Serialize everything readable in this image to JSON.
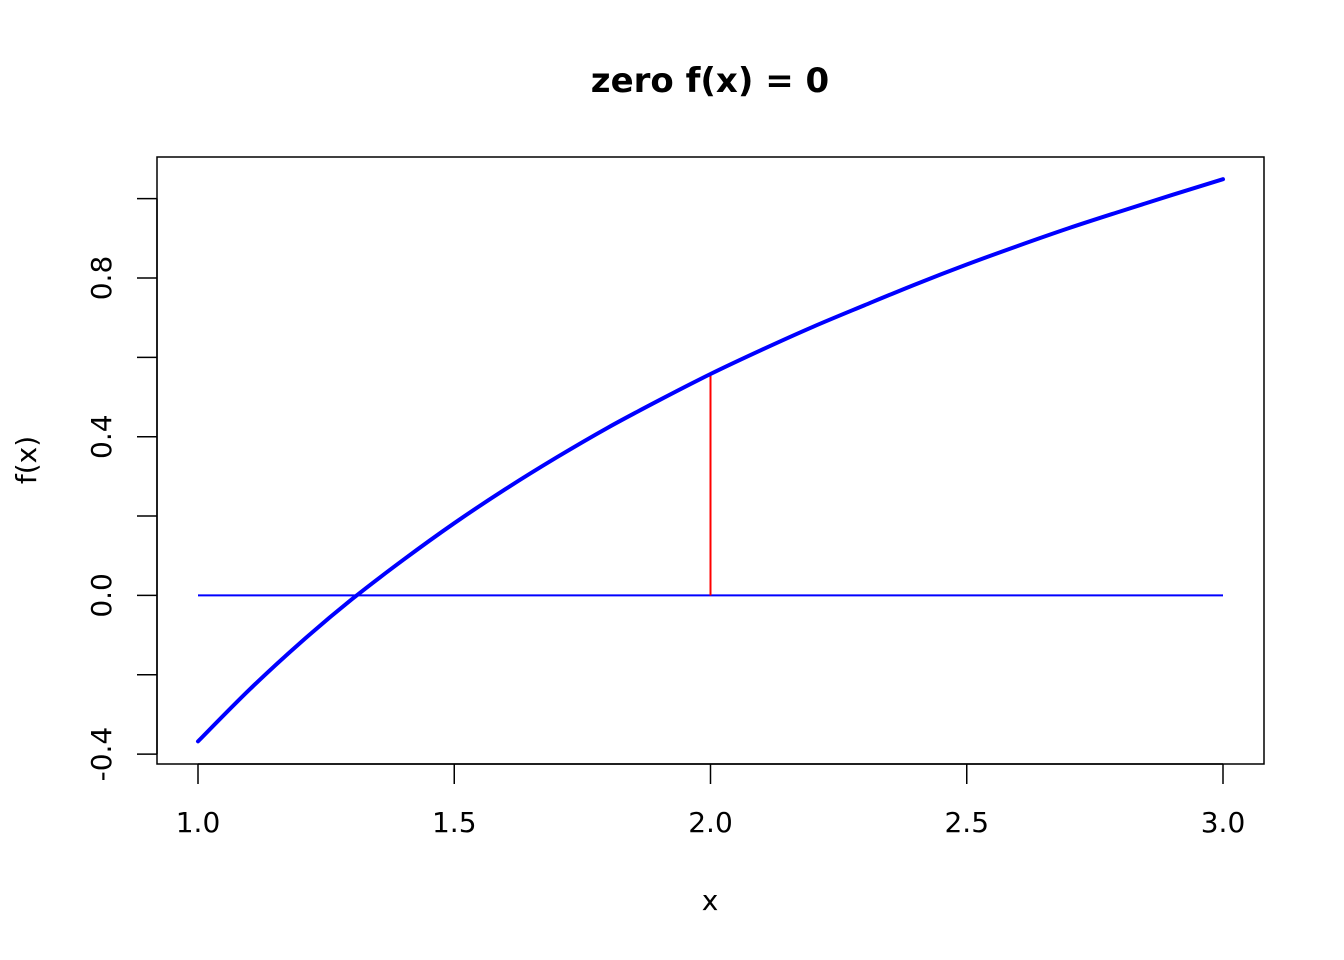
{
  "chart_data": {
    "type": "line",
    "title": "zero f(x) = 0",
    "xlabel": "x",
    "ylabel": "f(x)",
    "xlim": [
      0.92,
      3.08
    ],
    "ylim": [
      -0.425,
      1.105
    ],
    "x_ticks": [
      1.0,
      1.5,
      2.0,
      2.5,
      3.0
    ],
    "x_tick_labels": [
      "1.0",
      "1.5",
      "2.0",
      "2.5",
      "3.0"
    ],
    "y_ticks": [
      -0.4,
      -0.2,
      0.0,
      0.2,
      0.4,
      0.6,
      0.8,
      1.0
    ],
    "y_tick_labels": [
      "-0.4",
      "",
      "0.0",
      "",
      "0.4",
      "",
      "0.8",
      ""
    ],
    "series": [
      {
        "color": "#0000ff",
        "line_width": "thick",
        "x": [
          1.0,
          1.1,
          1.2,
          1.3,
          1.4,
          1.5,
          1.6,
          1.7,
          1.8,
          1.9,
          2.0,
          2.1,
          2.2,
          2.3,
          2.4,
          2.5,
          2.6,
          2.7,
          2.8,
          2.9,
          3.0
        ],
        "y": [
          -0.368,
          -0.238,
          -0.119,
          -0.01,
          0.089,
          0.182,
          0.268,
          0.348,
          0.423,
          0.492,
          0.558,
          0.619,
          0.677,
          0.731,
          0.784,
          0.834,
          0.881,
          0.926,
          0.968,
          1.009,
          1.049
        ]
      }
    ],
    "reference_lines": [
      {
        "kind": "horizontal",
        "y": 0.0,
        "x_from": 1.0,
        "x_to": 3.0,
        "color": "#0000ff"
      },
      {
        "kind": "vertical",
        "x": 2.0,
        "y_from": 0.0,
        "y_to": 0.558,
        "color": "#ff0000"
      }
    ],
    "grid": false,
    "legend": "none"
  }
}
